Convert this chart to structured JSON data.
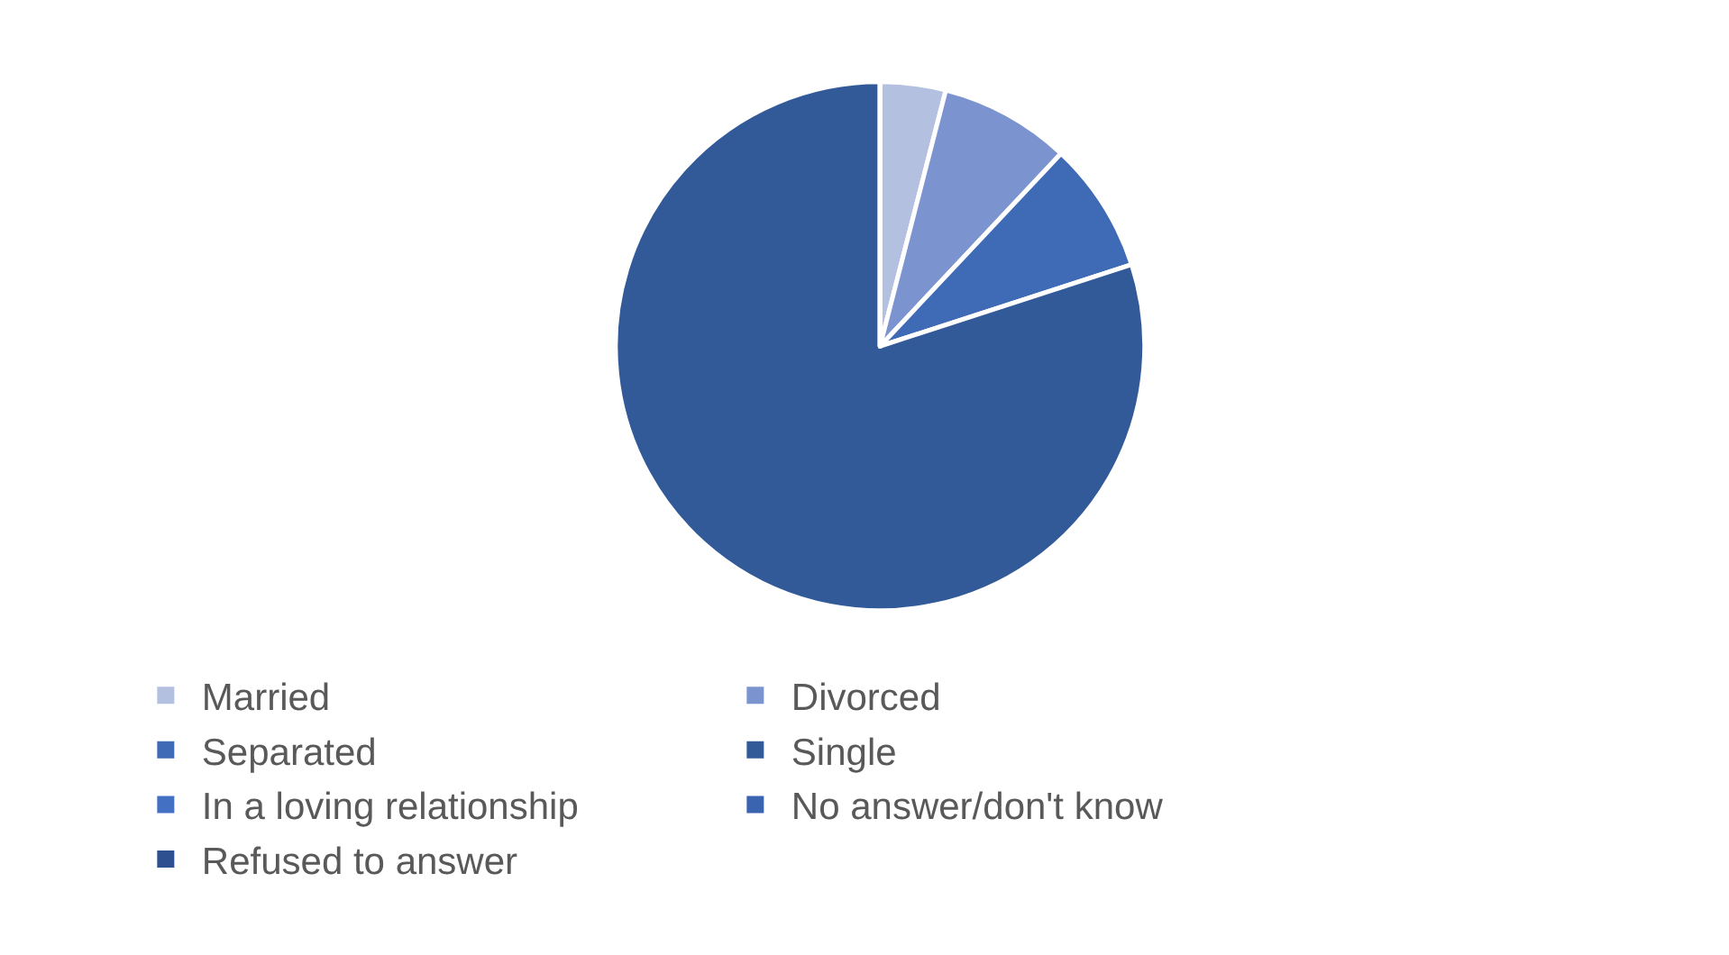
{
  "chart_data": {
    "type": "pie",
    "categories": [
      "Married",
      "Divorced",
      "Separated",
      "Single",
      "In a loving relationship",
      "No answer/don't know",
      "Refused to answer"
    ],
    "values": [
      4,
      8,
      8,
      80,
      0,
      0,
      0
    ],
    "colors": [
      "#b4c0e0",
      "#7b93cf",
      "#3f6ab6",
      "#325a98",
      "#4470c4",
      "#3a63b0",
      "#2f5090"
    ],
    "legend": "bottom"
  }
}
